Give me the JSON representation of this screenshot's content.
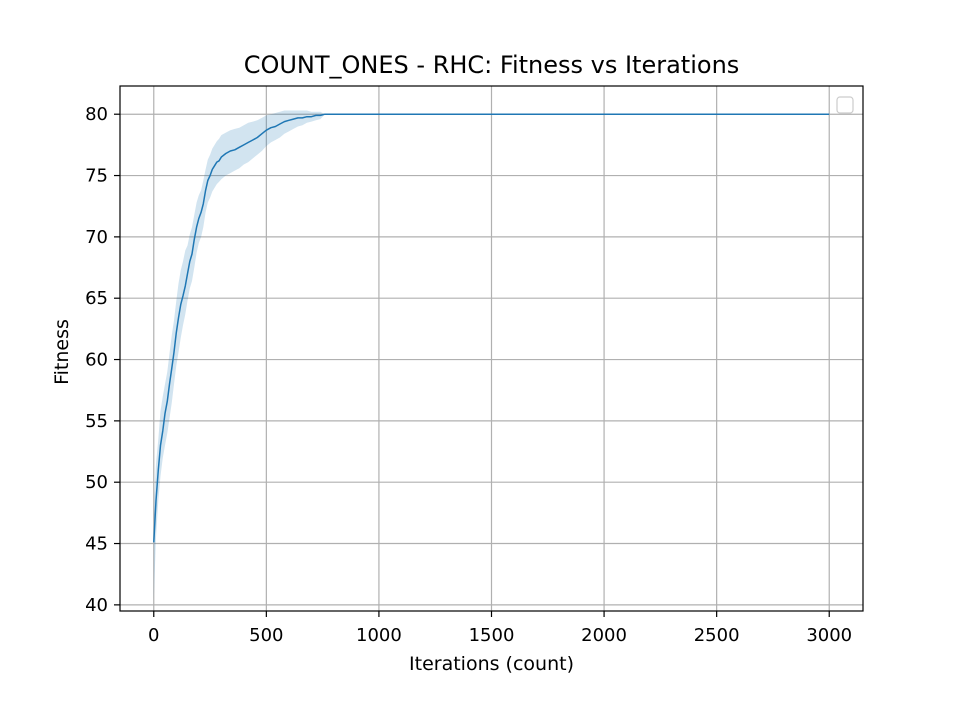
{
  "colors": {
    "line": "#1f77b4",
    "band": "#1f77b4",
    "grid": "#b0b0b0",
    "axes": "#000000"
  },
  "chart_data": {
    "type": "line",
    "title": "COUNT_ONES - RHC: Fitness vs Iterations",
    "xlabel": "Iterations (count)",
    "ylabel": "Fitness",
    "xlim": [
      -150,
      3150
    ],
    "ylim": [
      39.5,
      82.3
    ],
    "xticks": [
      0,
      500,
      1000,
      1500,
      2000,
      2500,
      3000
    ],
    "xtick_labels": [
      "0",
      "500",
      "1000",
      "1500",
      "2000",
      "2500",
      "3000"
    ],
    "yticks": [
      40,
      45,
      50,
      55,
      60,
      65,
      70,
      75,
      80
    ],
    "ytick_labels": [
      "40",
      "45",
      "50",
      "55",
      "60",
      "65",
      "70",
      "75",
      "80"
    ],
    "grid": true,
    "legend": {
      "position": "top-right",
      "entries": []
    },
    "series": [
      {
        "x": [
          0,
          10,
          20,
          30,
          40,
          50,
          60,
          70,
          80,
          90,
          100,
          110,
          120,
          130,
          140,
          150,
          160,
          170,
          180,
          190,
          200,
          210,
          220,
          230,
          240,
          250,
          260,
          270,
          280,
          290,
          300,
          320,
          340,
          360,
          380,
          400,
          420,
          440,
          460,
          480,
          500,
          520,
          540,
          560,
          580,
          600,
          620,
          640,
          660,
          680,
          700,
          720,
          740,
          760,
          780,
          800,
          1000,
          1500,
          2000,
          2500,
          3000
        ],
        "mean": [
          45.1,
          48.5,
          51.0,
          53.0,
          54.2,
          55.6,
          56.6,
          58.0,
          59.3,
          60.6,
          62.2,
          63.4,
          64.5,
          65.2,
          66.0,
          67.0,
          68.0,
          68.6,
          69.8,
          70.8,
          71.5,
          72.0,
          72.7,
          73.8,
          74.6,
          75.0,
          75.5,
          75.8,
          76.1,
          76.2,
          76.5,
          76.8,
          77.0,
          77.1,
          77.3,
          77.5,
          77.7,
          77.9,
          78.1,
          78.4,
          78.7,
          78.9,
          79.0,
          79.2,
          79.4,
          79.5,
          79.6,
          79.7,
          79.7,
          79.8,
          79.8,
          79.9,
          79.9,
          80.0,
          80.0,
          80.0,
          80.0,
          80.0,
          80.0,
          80.0,
          80.0
        ],
        "lower": [
          40.5,
          45.5,
          48.5,
          50.5,
          52.0,
          53.0,
          54.0,
          55.2,
          56.5,
          58.0,
          59.5,
          60.6,
          61.8,
          62.8,
          63.7,
          64.8,
          65.8,
          66.4,
          67.5,
          68.7,
          69.5,
          70.0,
          70.8,
          72.0,
          72.8,
          73.2,
          73.7,
          74.0,
          74.3,
          74.5,
          74.7,
          75.0,
          75.2,
          75.4,
          75.6,
          75.9,
          76.1,
          76.4,
          76.7,
          77.0,
          77.4,
          77.7,
          77.9,
          78.1,
          78.4,
          78.6,
          78.8,
          79.0,
          79.1,
          79.3,
          79.4,
          79.5,
          79.6,
          80.0,
          80.0,
          80.0,
          80.0,
          80.0,
          80.0,
          80.0,
          80.0
        ],
        "upper": [
          48.0,
          51.5,
          53.5,
          55.8,
          57.0,
          58.0,
          59.0,
          60.5,
          62.0,
          63.2,
          64.8,
          66.2,
          67.3,
          68.0,
          68.9,
          69.3,
          70.2,
          70.8,
          71.8,
          72.8,
          73.4,
          73.8,
          74.6,
          75.5,
          76.3,
          76.7,
          77.2,
          77.5,
          77.8,
          78.0,
          78.3,
          78.5,
          78.7,
          78.8,
          78.9,
          79.1,
          79.3,
          79.4,
          79.5,
          79.7,
          79.9,
          80.0,
          80.1,
          80.2,
          80.3,
          80.3,
          80.3,
          80.3,
          80.3,
          80.3,
          80.2,
          80.2,
          80.2,
          80.0,
          80.0,
          80.0,
          80.0,
          80.0,
          80.0,
          80.0,
          80.0
        ]
      }
    ]
  }
}
